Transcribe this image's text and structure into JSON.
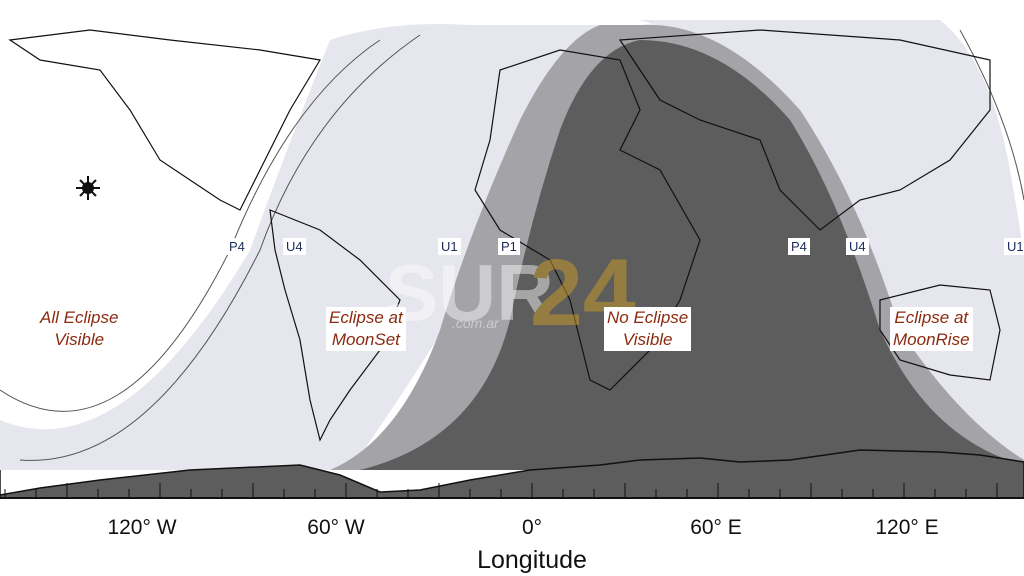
{
  "map": {
    "region_labels": {
      "all_eclipse": [
        "All Eclipse",
        "Visible"
      ],
      "eclipse_moonset": [
        "Eclipse at",
        "MoonSet"
      ],
      "no_eclipse": [
        "No Eclipse",
        "Visible"
      ],
      "eclipse_moonrise": [
        "Eclipse at",
        "MoonRise"
      ]
    },
    "contact_labels": [
      "P4",
      "U4",
      "U1",
      "P1",
      "P4",
      "U4",
      "U1"
    ],
    "x_axis": {
      "title": "Longitude",
      "ticks": [
        "120° W",
        "60° W",
        "0°",
        "60° E",
        "120° E"
      ]
    },
    "colors": {
      "all_eclipse": "#ffffff",
      "moonset_moonrise": "#e6e7ee",
      "penumbral": "#a3a3a8",
      "no_eclipse": "#5d5d5d"
    },
    "watermark": "SUR24 .com.ar"
  }
}
